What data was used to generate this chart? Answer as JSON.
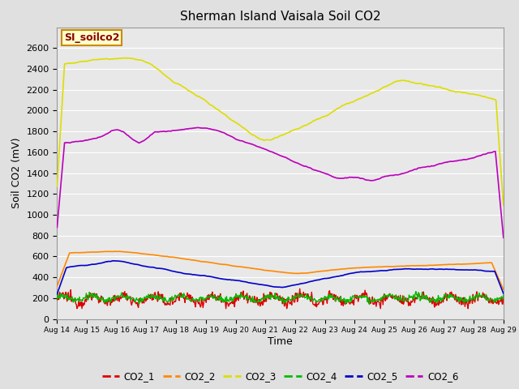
{
  "title": "Sherman Island Vaisala Soil CO2",
  "xlabel": "Time",
  "ylabel": "Soil CO2 (mV)",
  "annotation": "SI_soilco2",
  "ylim": [
    0,
    2800
  ],
  "yticks": [
    0,
    200,
    400,
    600,
    800,
    1000,
    1200,
    1400,
    1600,
    1800,
    2000,
    2200,
    2400,
    2600
  ],
  "x_labels": [
    "Aug 14",
    "Aug 15",
    "Aug 16",
    "Aug 17",
    "Aug 18",
    "Aug 19",
    "Aug 20",
    "Aug 21",
    "Aug 22",
    "Aug 23",
    "Aug 24",
    "Aug 25",
    "Aug 26",
    "Aug 27",
    "Aug 28",
    "Aug 29"
  ],
  "colors": {
    "CO2_1": "#dd0000",
    "CO2_2": "#ff8800",
    "CO2_3": "#dddd00",
    "CO2_4": "#00bb00",
    "CO2_5": "#0000cc",
    "CO2_6": "#bb00bb"
  },
  "background_color": "#e0e0e0",
  "plot_bg_color": "#e8e8e8",
  "annotation_bg": "#ffffcc",
  "annotation_border": "#cc8800",
  "grid_color": "#ffffff"
}
